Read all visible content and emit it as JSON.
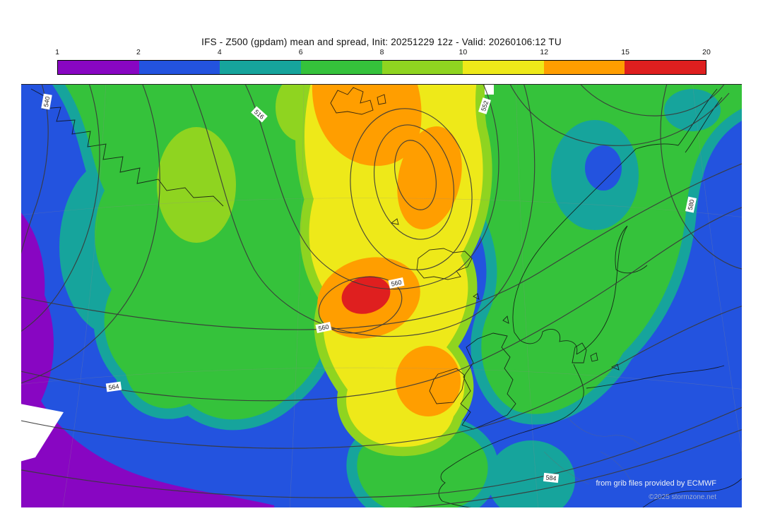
{
  "header": {
    "title": "IFS - Z500 (gpdam) mean and spread, Init: 20251229 12z - Valid: 20260106:12 TU"
  },
  "colorbar": {
    "ticks": [
      "1",
      "2",
      "4",
      "6",
      "8",
      "10",
      "12",
      "15",
      "20"
    ],
    "segments": [
      {
        "range": "1-2",
        "color": "#8806c2"
      },
      {
        "range": "2-4",
        "color": "#2353df"
      },
      {
        "range": "4-6",
        "color": "#16a49c"
      },
      {
        "range": "6-8",
        "color": "#35c23b"
      },
      {
        "range": "8-10",
        "color": "#8fd420"
      },
      {
        "range": "10-12",
        "color": "#eee919"
      },
      {
        "range": "12-15",
        "color": "#ff9e00"
      },
      {
        "range": "15-20",
        "color": "#df1f1f"
      }
    ]
  },
  "map": {
    "contour_labels": [
      {
        "text": "540"
      },
      {
        "text": "516"
      },
      {
        "text": "552"
      },
      {
        "text": "560"
      },
      {
        "text": "560"
      },
      {
        "text": "564"
      },
      {
        "text": "580"
      },
      {
        "text": "584"
      }
    ],
    "attribution": "from grib files provided by ECMWF",
    "copyright": "©2025 stormzone.net"
  },
  "chart_data": {
    "type": "heatmap",
    "title": "IFS - Z500 (gpdam) mean and spread, Init: 20251229 12z - Valid: 20260106:12 TU",
    "model": "IFS",
    "field_shaded": "Z500 ensemble spread (gpdam)",
    "field_contoured": "Z500 ensemble mean (gpdam)",
    "init": "20251229 12z",
    "valid": "20260106:12 TU",
    "legend": {
      "position": "top",
      "ticks": [
        1,
        2,
        4,
        6,
        8,
        10,
        12,
        15,
        20
      ],
      "colors": [
        "#8806c2",
        "#2353df",
        "#16a49c",
        "#35c23b",
        "#8fd420",
        "#eee919",
        "#ff9e00",
        "#df1f1f"
      ]
    },
    "contour_labeled_values": [
      516,
      540,
      552,
      560,
      560,
      564,
      580,
      584
    ],
    "notable_features": [
      {
        "feature": "spread maximum > 15 gpdam (red core)",
        "location": "North Atlantic west of Ireland"
      },
      {
        "feature": "high spread 12-15 gpdam (orange)",
        "location": "Norwegian Sea / Iceland and south of Iceland"
      },
      {
        "feature": "low spread 1-2 gpdam (purple)",
        "location": "southwest map edge"
      },
      {
        "feature": "closed Z500 mean low with labeled contours",
        "location": "Norwegian Sea"
      }
    ]
  }
}
